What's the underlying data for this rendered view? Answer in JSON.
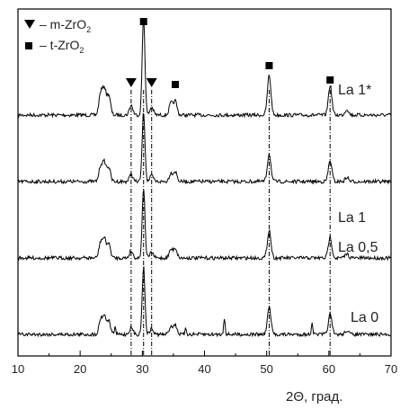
{
  "chart_data": {
    "type": "line",
    "xlabel": "2Θ, град.",
    "xlim": [
      10,
      70
    ],
    "xticks": [
      10,
      20,
      30,
      40,
      50,
      60,
      70
    ],
    "grid": false,
    "legend": [
      {
        "marker": "triangle-down",
        "label_main": "– m-ZrO",
        "label_sub": "2"
      },
      {
        "marker": "square",
        "label_main": "– t-ZrO",
        "label_sub": "2"
      }
    ],
    "series": [
      {
        "name": "La 1*",
        "baseline_offset": 3
      },
      {
        "name": "La 1",
        "baseline_offset": 2
      },
      {
        "name": "La 0,5",
        "baseline_offset": 1
      },
      {
        "name": "La 0",
        "baseline_offset": 0
      }
    ],
    "peaks": [
      {
        "x": 23.3,
        "h": 0.22
      },
      {
        "x": 23.9,
        "h": 0.26
      },
      {
        "x": 24.6,
        "h": 0.2
      },
      {
        "x": 28.2,
        "h": 0.1
      },
      {
        "x": 30.2,
        "h": 1.0
      },
      {
        "x": 31.5,
        "h": 0.08
      },
      {
        "x": 34.6,
        "h": 0.12
      },
      {
        "x": 35.3,
        "h": 0.14
      },
      {
        "x": 50.4,
        "h": 0.4
      },
      {
        "x": 60.2,
        "h": 0.3
      },
      {
        "x": 62.9,
        "h": 0.06
      }
    ],
    "reference_lines_x": [
      28.2,
      30.2,
      31.5,
      50.4,
      60.2
    ],
    "markers": [
      {
        "type": "triangle-down",
        "x": 28.2
      },
      {
        "type": "square",
        "x": 30.2
      },
      {
        "type": "triangle-down",
        "x": 31.5
      },
      {
        "type": "square",
        "x": 35.3
      },
      {
        "type": "square",
        "x": 50.4
      },
      {
        "type": "square",
        "x": 60.2
      }
    ]
  }
}
